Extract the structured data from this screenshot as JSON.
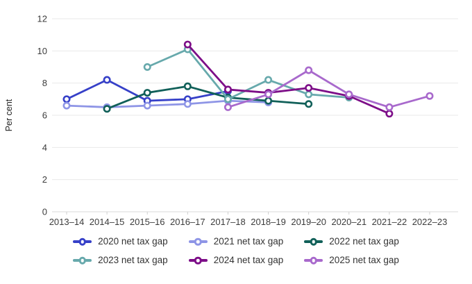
{
  "chart_data": {
    "type": "line",
    "title": "",
    "xlabel": "",
    "ylabel": "Per cent",
    "ylim": [
      0,
      12
    ],
    "yticks": [
      0,
      2,
      4,
      6,
      8,
      10,
      12
    ],
    "grid": true,
    "legend_position": "bottom",
    "categories": [
      "2013–14",
      "2014–15",
      "2015–16",
      "2016–17",
      "2017–18",
      "2018–19",
      "2019–20",
      "2020–21",
      "2021–22",
      "2022–23"
    ],
    "series": [
      {
        "name": "2020 net tax gap",
        "color": "#3640c8",
        "start_index": 0,
        "values": [
          7.0,
          8.2,
          6.9,
          7.0,
          7.5
        ]
      },
      {
        "name": "2021 net tax gap",
        "color": "#8e95e6",
        "start_index": 0,
        "values": [
          6.6,
          6.5,
          6.6,
          6.7,
          6.9,
          6.8
        ]
      },
      {
        "name": "2022 net tax gap",
        "color": "#116059",
        "start_index": 1,
        "values": [
          6.4,
          7.4,
          7.8,
          7.1,
          6.9,
          6.7
        ]
      },
      {
        "name": "2023 net tax gap",
        "color": "#67a9ac",
        "start_index": 2,
        "values": [
          9.0,
          10.1,
          7.0,
          8.2,
          7.3,
          7.1
        ]
      },
      {
        "name": "2024 net tax gap",
        "color": "#7d0e88",
        "start_index": 3,
        "values": [
          10.4,
          7.6,
          7.4,
          7.7,
          7.2,
          6.1
        ]
      },
      {
        "name": "2025 net tax gap",
        "color": "#a869cc",
        "start_index": 4,
        "values": [
          6.5,
          7.3,
          8.8,
          7.3,
          6.5,
          7.2
        ]
      }
    ],
    "axis_text_color": "#3c3c3c",
    "gridline_color": "#e8e8e8",
    "baseline_color": "#d9d9d9",
    "tick_color": "#cfcfcf"
  }
}
